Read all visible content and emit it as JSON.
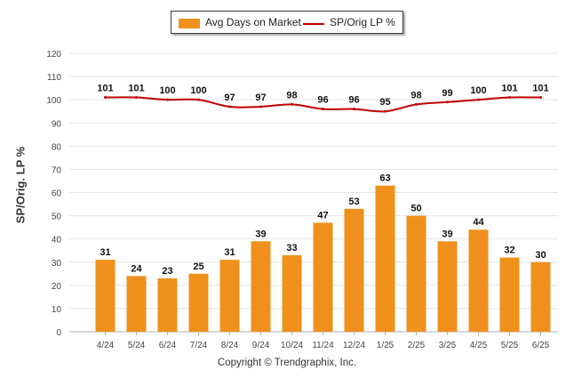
{
  "legend": {
    "bar_label": "Avg Days on Market",
    "line_label": "SP/Orig LP %"
  },
  "ylabel": "SP/Orig. LP %",
  "copyright": "Copyright © Trendgraphix, Inc.",
  "colors": {
    "bar": "#f0901c",
    "line": "#c00000",
    "grid": "#e4e4e4",
    "axis": "#b0b0b0"
  },
  "chart_data": {
    "type": "bar",
    "categories": [
      "4/24",
      "5/24",
      "6/24",
      "7/24",
      "8/24",
      "9/24",
      "10/24",
      "11/24",
      "12/24",
      "1/25",
      "2/25",
      "3/25",
      "4/25",
      "5/25",
      "6/25"
    ],
    "series": [
      {
        "name": "Avg Days on Market",
        "type": "bar",
        "values": [
          31,
          24,
          23,
          25,
          31,
          39,
          33,
          47,
          53,
          63,
          50,
          39,
          44,
          32,
          30
        ]
      },
      {
        "name": "SP/Orig LP %",
        "type": "line",
        "values": [
          101,
          101,
          100,
          100,
          97,
          97,
          98,
          96,
          96,
          95,
          98,
          99,
          100,
          101,
          101
        ]
      }
    ],
    "yticks": [
      0,
      10,
      20,
      30,
      40,
      50,
      60,
      70,
      80,
      90,
      100,
      110,
      120
    ],
    "ylim": [
      0,
      120
    ],
    "ylabel": "SP/Orig. LP %",
    "legend": "top-center",
    "grid": true
  }
}
